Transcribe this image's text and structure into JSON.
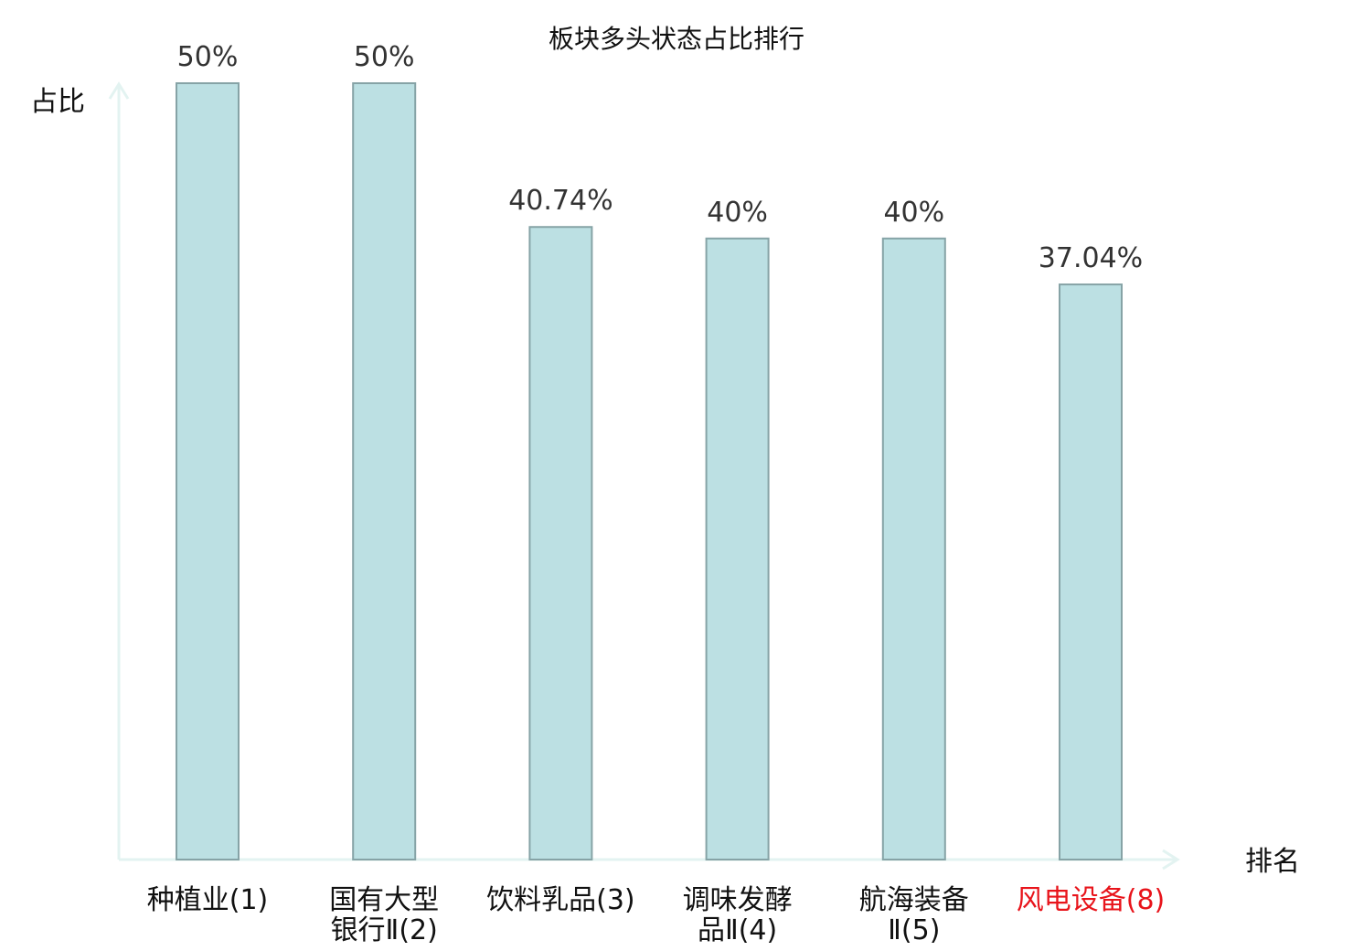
{
  "chart_data": {
    "type": "bar",
    "title": "板块多头状态占比排行",
    "ylabel": "占比",
    "xlabel": "排名",
    "ylim": [
      0,
      50
    ],
    "grid": false,
    "categories": [
      {
        "lines": [
          "种植业(1)"
        ],
        "highlight": false
      },
      {
        "lines": [
          "国有大型",
          "银行Ⅱ(2)"
        ],
        "highlight": false
      },
      {
        "lines": [
          "饮料乳品(3)"
        ],
        "highlight": false
      },
      {
        "lines": [
          "调味发酵",
          "品Ⅱ(4)"
        ],
        "highlight": false
      },
      {
        "lines": [
          "航海装备",
          "Ⅱ(5)"
        ],
        "highlight": false
      },
      {
        "lines": [
          "风电设备(8)"
        ],
        "highlight": true
      }
    ],
    "values": [
      50,
      50,
      40.74,
      40,
      40,
      37.04
    ],
    "value_labels": [
      "50%",
      "50%",
      "40.74%",
      "40%",
      "40%",
      "37.04%"
    ],
    "colors": {
      "bar_fill": "#bce0e3",
      "bar_stroke": "#86a3a6",
      "axis": "#e3f3f1",
      "highlight_label": "#e8141b",
      "label": "#111111"
    }
  }
}
